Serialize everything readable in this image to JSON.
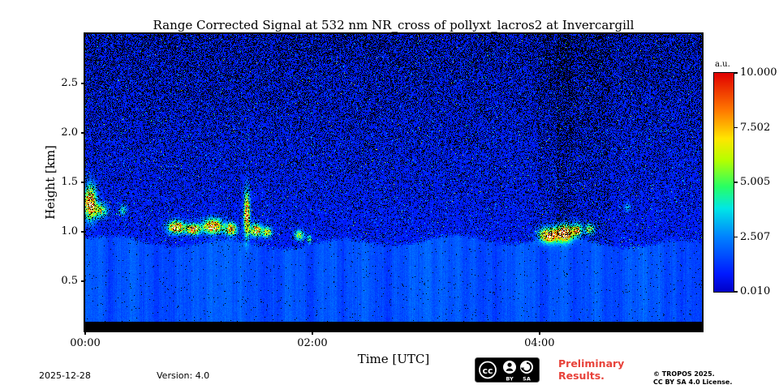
{
  "title": "Range Corrected Signal at 532 nm NR_cross of pollyxt_lacros2 at Invercargill",
  "axes": {
    "ylabel": "Height [km]",
    "xlabel": "Time [UTC]",
    "x_ticks": [
      "00:00",
      "02:00",
      "04:00"
    ],
    "x_tick_hours": [
      0,
      2,
      4
    ],
    "y_ticks": [
      "0.5",
      "1.0",
      "1.5",
      "2.0",
      "2.5"
    ],
    "y_tick_values": [
      0.5,
      1.0,
      1.5,
      2.0,
      2.5
    ]
  },
  "colorbar": {
    "unit": "a.u.",
    "ticks": [
      "10.000",
      "7.502",
      "5.005",
      "2.507",
      "0.010"
    ],
    "tick_values": [
      10.0,
      7.502,
      5.005,
      2.507,
      0.01
    ],
    "min": 0.01,
    "max": 10.0,
    "colormap": "jet"
  },
  "footer": {
    "date": "2025-12-28",
    "version": "Version: 4.0",
    "preliminary": "Preliminary Results.",
    "license_line1": "© TROPOS 2025.",
    "license_line2": "CC BY SA 4.0 License.",
    "badge": {
      "cc": "cc",
      "by": "BY",
      "sa": "SA"
    }
  },
  "chart_data": {
    "type": "heatmap",
    "title": "Range Corrected Signal at 532 nm NR_cross of pollyxt_lacros2 at Invercargill",
    "xlabel": "Time [UTC]",
    "ylabel": "Height [km]",
    "x_range_hours": [
      0,
      5.43
    ],
    "y_range_km": [
      0.0,
      3.0
    ],
    "value_range_au": [
      0.01,
      10.0
    ],
    "colormap": "jet",
    "description": "Lidar time-height quicklook: low blue signal with black noise speckle aloft, solid boundary-layer aerosol signal below ~0.9 km, black surface strip below ~0.1 km, bright white cloud/aerosol layers near 1.0-1.5 km around 00:00-02:00 and 04:00-04:30 UTC.",
    "background": {
      "aerosol_layer_top_km": 0.9,
      "aerosol_value_au": 1.7,
      "noise_value_au": 0.6,
      "black_strip_top_km": 0.095,
      "speckle_density_min": 0.12,
      "speckle_density_max": 0.45
    },
    "cloud_features": [
      {
        "t": 0.04,
        "h": 1.3,
        "dt": 0.05,
        "dh": 0.16,
        "amp": 13
      },
      {
        "t": 0.13,
        "h": 1.22,
        "dt": 0.06,
        "dh": 0.07,
        "amp": 7
      },
      {
        "t": 0.33,
        "h": 1.22,
        "dt": 0.03,
        "dh": 0.05,
        "amp": 5
      },
      {
        "t": 0.8,
        "h": 1.05,
        "dt": 0.07,
        "dh": 0.06,
        "amp": 13
      },
      {
        "t": 0.95,
        "h": 1.03,
        "dt": 0.06,
        "dh": 0.05,
        "amp": 12
      },
      {
        "t": 1.12,
        "h": 1.06,
        "dt": 0.08,
        "dh": 0.07,
        "amp": 13
      },
      {
        "t": 1.28,
        "h": 1.03,
        "dt": 0.05,
        "dh": 0.06,
        "amp": 11
      },
      {
        "t": 1.42,
        "h": 1.18,
        "dt": 0.025,
        "dh": 0.22,
        "amp": 12
      },
      {
        "t": 1.5,
        "h": 1.02,
        "dt": 0.05,
        "dh": 0.06,
        "amp": 11
      },
      {
        "t": 1.6,
        "h": 1.0,
        "dt": 0.04,
        "dh": 0.05,
        "amp": 9
      },
      {
        "t": 1.88,
        "h": 0.97,
        "dt": 0.04,
        "dh": 0.05,
        "amp": 7
      },
      {
        "t": 1.97,
        "h": 0.93,
        "dt": 0.02,
        "dh": 0.04,
        "amp": 6
      },
      {
        "t": 4.08,
        "h": 0.97,
        "dt": 0.08,
        "dh": 0.07,
        "amp": 13
      },
      {
        "t": 4.22,
        "h": 0.99,
        "dt": 0.07,
        "dh": 0.08,
        "amp": 14
      },
      {
        "t": 4.33,
        "h": 1.02,
        "dt": 0.04,
        "dh": 0.06,
        "amp": 10
      },
      {
        "t": 4.44,
        "h": 1.03,
        "dt": 0.04,
        "dh": 0.05,
        "amp": 8
      },
      {
        "t": 4.77,
        "h": 1.25,
        "dt": 0.03,
        "dh": 0.04,
        "amp": 3
      }
    ],
    "attenuated_columns": [
      {
        "t0": 3.98,
        "t1": 4.62,
        "extra_black": 0.12
      },
      {
        "t0": 4.15,
        "t1": 4.28,
        "extra_black": 0.1
      }
    ]
  }
}
